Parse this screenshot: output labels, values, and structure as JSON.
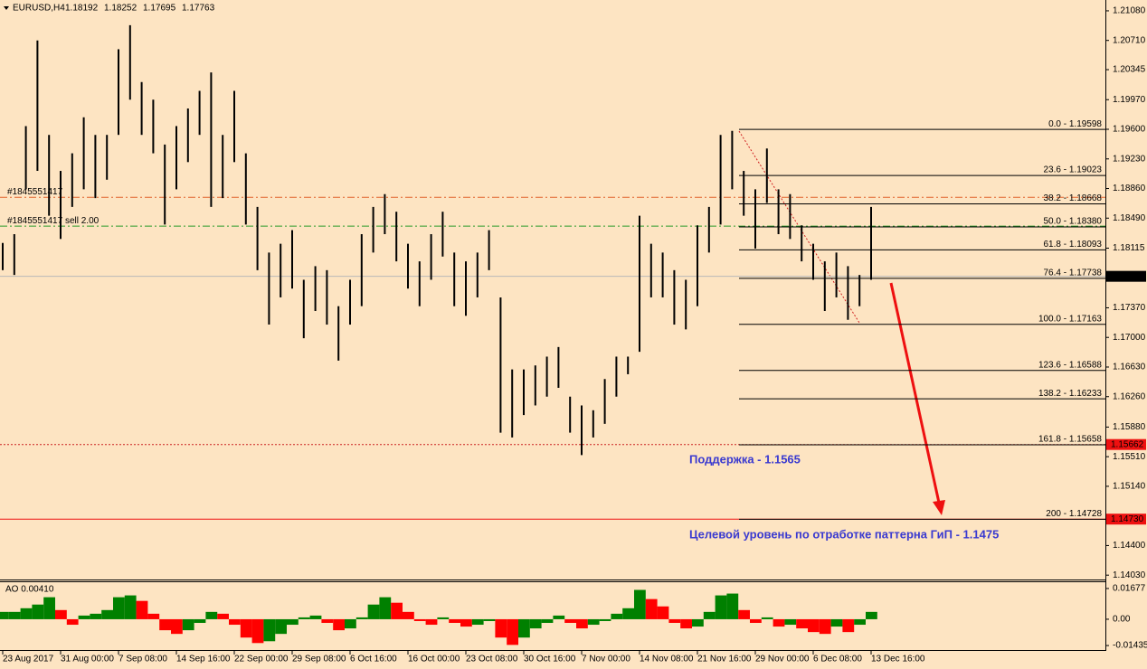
{
  "chart_data": [
    {
      "type": "range",
      "symbol": "EURUSD,H4",
      "quote": [
        1.18192,
        1.18252,
        1.17695,
        1.17763
      ],
      "high": [
        1.1818,
        1.1829,
        1.1964,
        1.2071,
        1.1953,
        1.1908,
        1.193,
        1.1975,
        1.1953,
        1.1953,
        1.206,
        1.209,
        1.2019,
        1.1997,
        1.1941,
        1.1964,
        1.1986,
        1.2008,
        1.2031,
        1.1953,
        1.2008,
        1.193,
        1.1863,
        1.1806,
        1.1817,
        1.1834,
        1.1772,
        1.1789,
        1.1784,
        1.1739,
        1.1772,
        1.1829,
        1.1863,
        1.1879,
        1.1857,
        1.1817,
        1.1795,
        1.1829,
        1.1857,
        1.1806,
        1.1795,
        1.1806,
        1.1834,
        1.175,
        1.166,
        1.166,
        1.1665,
        1.1676,
        1.1688,
        1.1626,
        1.1615,
        1.1609,
        1.1648,
        1.1676,
        1.1676,
        1.1852,
        1.1817,
        1.1806,
        1.1784,
        1.1772,
        1.184,
        1.1863,
        1.1953,
        1.1958,
        1.1908,
        1.1885,
        1.1936,
        1.1885,
        1.1879,
        1.184,
        1.1817,
        1.1795,
        1.1806,
        1.1789,
        1.1778,
        1.1863
      ],
      "low": [
        1.1784,
        1.1778,
        1.1885,
        1.1908,
        1.1852,
        1.1823,
        1.1863,
        1.1885,
        1.1874,
        1.1897,
        1.1953,
        1.1997,
        1.1953,
        1.193,
        1.1841,
        1.1885,
        1.1919,
        1.1953,
        1.1863,
        1.1874,
        1.1919,
        1.1841,
        1.1784,
        1.1716,
        1.175,
        1.1761,
        1.1699,
        1.1733,
        1.1716,
        1.1671,
        1.1716,
        1.1739,
        1.1806,
        1.1829,
        1.1795,
        1.1761,
        1.1739,
        1.1772,
        1.1801,
        1.1739,
        1.1727,
        1.175,
        1.1784,
        1.1581,
        1.1575,
        1.1603,
        1.1615,
        1.1626,
        1.1637,
        1.1581,
        1.1553,
        1.1575,
        1.1592,
        1.1626,
        1.1654,
        1.1682,
        1.175,
        1.175,
        1.1716,
        1.171,
        1.1739,
        1.1806,
        1.1841,
        1.1885,
        1.1852,
        1.1811,
        1.1868,
        1.1829,
        1.1823,
        1.1795,
        1.1772,
        1.1733,
        1.175,
        1.1722,
        1.1739,
        1.1772
      ],
      "color": "#000000",
      "xlim": [
        0,
        95
      ],
      "xticks": [
        {
          "value": 0,
          "label": "23 Aug 2017"
        },
        {
          "value": 5,
          "label": "31 Aug 00:00"
        },
        {
          "value": 10,
          "label": "7 Sep 08:00"
        },
        {
          "value": 15,
          "label": "14 Sep 16:00"
        },
        {
          "value": 20,
          "label": "22 Sep 00:00"
        },
        {
          "value": 25,
          "label": "29 Sep 08:00"
        },
        {
          "value": 30,
          "label": "6 Oct 16:00"
        },
        {
          "value": 35,
          "label": "16 Oct 00:00"
        },
        {
          "value": 40,
          "label": "23 Oct 08:00"
        },
        {
          "value": 45,
          "label": "30 Oct 16:00"
        },
        {
          "value": 50,
          "label": "7 Nov 00:00"
        },
        {
          "value": 55,
          "label": "14 Nov 08:00"
        },
        {
          "value": 60,
          "label": "21 Nov 16:00"
        },
        {
          "value": 65,
          "label": "29 Nov 00:00"
        },
        {
          "value": 70,
          "label": "6 Dec 08:00"
        },
        {
          "value": 75,
          "label": "13 Dec 16:00"
        }
      ],
      "ylim": [
        1.13987,
        1.21215
      ],
      "yticks": [
        {
          "value": 1.2108,
          "label": "1.21080"
        },
        {
          "value": 1.2071,
          "label": "1.20710"
        },
        1.20345,
        {
          "value": 1.1997,
          "label": "1.19970"
        },
        {
          "value": 1.196,
          "label": "1.19600"
        },
        {
          "value": 1.1923,
          "label": "1.19230"
        },
        {
          "value": 1.1886,
          "label": "1.18860"
        },
        {
          "value": 1.1849,
          "label": "1.18490"
        },
        1.18115,
        {
          "value": 1.1737,
          "label": "1.17370"
        },
        {
          "value": 1.17,
          "label": "1.17000"
        },
        {
          "value": 1.1663,
          "label": "1.16630"
        },
        {
          "value": 1.1626,
          "label": "1.16260"
        },
        {
          "value": 1.1588,
          "label": "1.15880"
        },
        {
          "value": 1.1551,
          "label": "1.15510"
        },
        {
          "value": 1.1514,
          "label": "1.15140"
        },
        {
          "value": 1.144,
          "label": "1.14400"
        },
        {
          "value": 1.1403,
          "label": "1.14030"
        }
      ],
      "fibo": [
        {
          "value": 1.19598,
          "label": "0.0 - 1.19598"
        },
        {
          "value": 1.19023,
          "label": "23.6 - 1.19023"
        },
        {
          "value": 1.18668,
          "label": "38.2 - 1.18668"
        },
        {
          "value": 1.1838,
          "label": "50.0 - 1.18380"
        },
        {
          "value": 1.18093,
          "label": "61.8 - 1.18093"
        },
        {
          "value": 1.17738,
          "label": "76.4 - 1.17738"
        },
        {
          "value": 1.17163,
          "label": "100.0 - 1.17163"
        },
        {
          "value": 1.16588,
          "label": "123.6 - 1.16588"
        },
        {
          "value": 1.16233,
          "label": "138.2 - 1.16233"
        },
        {
          "value": 1.15658,
          "label": "161.8 - 1.15658"
        },
        {
          "value": 1.14728,
          "label": "200 - 1.14728"
        }
      ],
      "orders": [
        {
          "value": 1.1875,
          "label": "#1845551417",
          "color": "#e0602a"
        },
        {
          "value": 1.1839,
          "label": "#1845551417 sell 2.00",
          "color": "#2a9a2a"
        }
      ],
      "price_lines": [
        {
          "value": 1.17763,
          "color": "#b8b8b8",
          "tag": "#000000"
        },
        {
          "value": 1.15662,
          "color": "#cc2020",
          "tag": "#ee1010",
          "dotted": true
        },
        {
          "value": {
            "value": 1.1473,
            "label": "1.14730"
          },
          "color": "#ee1010",
          "tag": "#ee1010"
        }
      ],
      "annotations": [
        "Поддержка - 1.1565",
        "Целевой уровень по отработке паттерна ГиП - 1.1475"
      ]
    },
    {
      "type": "bar",
      "title": "AO 0.00410",
      "values": [
        0.004,
        0.004,
        0.006,
        0.008,
        0.012,
        0.005,
        -0.003,
        0.002,
        0.003,
        0.005,
        0.012,
        0.013,
        0.01,
        0.003,
        -0.006,
        -0.008,
        -0.006,
        -0.002,
        0.004,
        0.003,
        -0.003,
        -0.01,
        -0.013,
        -0.012,
        -0.008,
        -0.003,
        0.001,
        0.002,
        -0.002,
        -0.006,
        -0.005,
        0.001,
        0.008,
        0.012,
        0.009,
        0.004,
        -0.001,
        -0.003,
        0.001,
        -0.002,
        -0.004,
        -0.003,
        -0.001,
        -0.01,
        -0.014,
        -0.01,
        -0.005,
        -0.002,
        0.002,
        -0.002,
        -0.005,
        -0.003,
        -0.001,
        0.003,
        0.006,
        0.016,
        0.011,
        0.007,
        -0.002,
        -0.005,
        -0.004,
        0.004,
        0.013,
        0.014,
        0.005,
        -0.002,
        0.001,
        -0.004,
        -0.003,
        -0.005,
        -0.007,
        -0.008,
        -0.004,
        -0.007,
        -0.003,
        0.004
      ],
      "colors": [
        "#008000",
        "#ff0000"
      ],
      "ylim": [
        -0.0163,
        0.0197
      ],
      "yticks": [
        0.01677,
        {
          "value": 0,
          "label": "0.00"
        },
        -0.01435
      ]
    }
  ]
}
